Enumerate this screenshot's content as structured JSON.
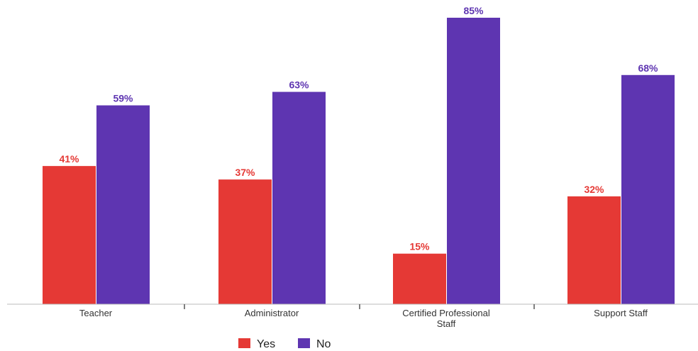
{
  "chart_data": {
    "type": "bar",
    "title": "",
    "xlabel": "",
    "ylabel": "",
    "ylim": [
      0,
      85
    ],
    "grid": false,
    "legend_position": "bottom",
    "value_suffix": "%",
    "categories": [
      [
        "Teacher"
      ],
      [
        "Administrator"
      ],
      [
        "Certified Professional",
        "Staff"
      ],
      [
        "Support Staff"
      ]
    ],
    "series": [
      {
        "name": "Yes",
        "color": "#e53935",
        "values": [
          41,
          37,
          15,
          32
        ]
      },
      {
        "name": "No",
        "color": "#5e35b1",
        "values": [
          59,
          63,
          85,
          68
        ]
      }
    ]
  }
}
